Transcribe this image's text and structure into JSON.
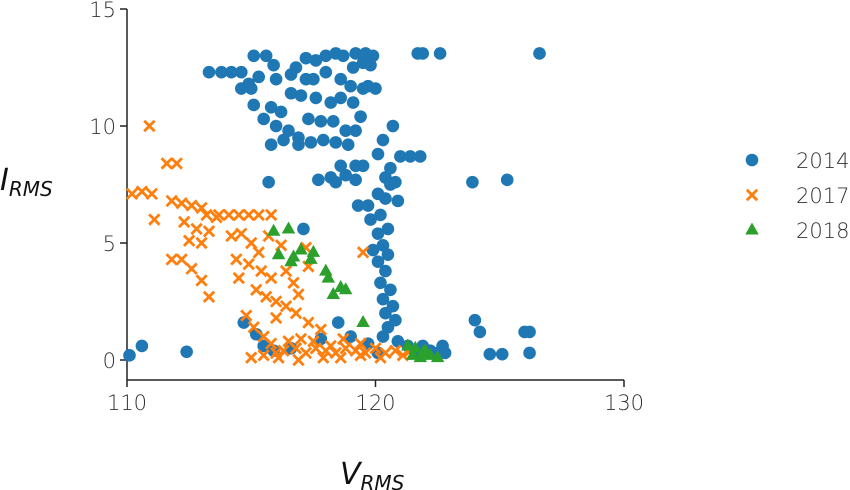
{
  "chart_data": {
    "type": "scatter",
    "xlabel": {
      "main": "V",
      "sub": "RMS"
    },
    "ylabel": {
      "main": "I",
      "sub": "RMS"
    },
    "xlim": [
      110,
      130
    ],
    "ylim": [
      0,
      15
    ],
    "xticks": [
      110,
      120,
      130
    ],
    "yticks": [
      0,
      5,
      10,
      15
    ],
    "grid": false,
    "legend_position": "right",
    "series": [
      {
        "name": "2014",
        "color": "#1f77b4",
        "marker": "circle",
        "points": [
          [
            110.1,
            0.2
          ],
          [
            110.6,
            0.6
          ],
          [
            112.4,
            0.35
          ],
          [
            113.3,
            12.3
          ],
          [
            113.8,
            12.3
          ],
          [
            114.2,
            12.3
          ],
          [
            114.6,
            12.3
          ],
          [
            114.9,
            11.8
          ],
          [
            115.1,
            13.0
          ],
          [
            115.6,
            13.0
          ],
          [
            115.3,
            12.1
          ],
          [
            115.9,
            12.6
          ],
          [
            116.0,
            12.0
          ],
          [
            116.6,
            12.2
          ],
          [
            116.8,
            12.5
          ],
          [
            117.2,
            12.0
          ],
          [
            117.5,
            12.0
          ],
          [
            117.2,
            12.9
          ],
          [
            117.6,
            12.8
          ],
          [
            118.0,
            13.0
          ],
          [
            118.4,
            13.1
          ],
          [
            118.7,
            13.0
          ],
          [
            119.2,
            13.1
          ],
          [
            119.6,
            13.1
          ],
          [
            118.0,
            12.3
          ],
          [
            118.6,
            12.0
          ],
          [
            119.0,
            11.7
          ],
          [
            119.5,
            11.6
          ],
          [
            120.0,
            11.6
          ],
          [
            119.9,
            13.0
          ],
          [
            119.5,
            12.7
          ],
          [
            119.8,
            12.6
          ],
          [
            114.6,
            11.6
          ],
          [
            115.0,
            11.6
          ],
          [
            115.1,
            10.9
          ],
          [
            115.8,
            10.8
          ],
          [
            116.2,
            10.6
          ],
          [
            116.6,
            11.4
          ],
          [
            117.0,
            11.3
          ],
          [
            117.6,
            11.2
          ],
          [
            118.2,
            11.0
          ],
          [
            118.6,
            11.2
          ],
          [
            119.1,
            11.0
          ],
          [
            115.5,
            10.3
          ],
          [
            116.0,
            10.0
          ],
          [
            116.5,
            9.8
          ],
          [
            116.9,
            9.5
          ],
          [
            117.3,
            10.3
          ],
          [
            117.8,
            10.2
          ],
          [
            118.3,
            10.2
          ],
          [
            118.8,
            9.8
          ],
          [
            115.8,
            9.2
          ],
          [
            116.3,
            9.4
          ],
          [
            116.9,
            9.2
          ],
          [
            117.4,
            9.3
          ],
          [
            117.9,
            9.4
          ],
          [
            118.4,
            9.3
          ],
          [
            118.9,
            9.2
          ],
          [
            119.2,
            9.8
          ],
          [
            119.4,
            10.4
          ],
          [
            119.2,
            8.3
          ],
          [
            119.5,
            8.3
          ],
          [
            118.6,
            8.3
          ],
          [
            118.2,
            7.8
          ],
          [
            118.8,
            7.9
          ],
          [
            119.2,
            7.7
          ],
          [
            117.7,
            7.7
          ],
          [
            118.4,
            7.6
          ],
          [
            119.3,
            6.6
          ],
          [
            119.7,
            6.6
          ],
          [
            120.1,
            7.1
          ],
          [
            120.4,
            6.9
          ],
          [
            120.6,
            8.2
          ],
          [
            121.0,
            8.7
          ],
          [
            121.4,
            8.7
          ],
          [
            121.8,
            8.7
          ],
          [
            120.8,
            7.6
          ],
          [
            120.4,
            7.8
          ],
          [
            120.2,
            6.2
          ],
          [
            119.8,
            6.0
          ],
          [
            120.5,
            5.6
          ],
          [
            120.1,
            5.4
          ],
          [
            120.3,
            4.9
          ],
          [
            119.9,
            4.7
          ],
          [
            120.5,
            4.5
          ],
          [
            120.1,
            4.2
          ],
          [
            120.4,
            3.8
          ],
          [
            120.2,
            3.3
          ],
          [
            120.6,
            3.0
          ],
          [
            120.3,
            2.6
          ],
          [
            120.7,
            2.3
          ],
          [
            120.4,
            2.0
          ],
          [
            120.8,
            1.7
          ],
          [
            120.5,
            1.4
          ],
          [
            120.3,
            1.0
          ],
          [
            120.9,
            0.8
          ],
          [
            121.3,
            0.6
          ],
          [
            121.6,
            0.3
          ],
          [
            121.9,
            0.6
          ],
          [
            122.2,
            0.4
          ],
          [
            122.5,
            0.3
          ],
          [
            120.6,
            7.5
          ],
          [
            120.9,
            6.8
          ],
          [
            120.1,
            8.8
          ],
          [
            120.7,
            10.0
          ],
          [
            119.7,
            11.7
          ],
          [
            119.1,
            12.5
          ],
          [
            120.3,
            9.4
          ],
          [
            114.7,
            1.6
          ],
          [
            115.2,
            1.1
          ],
          [
            115.5,
            0.6
          ],
          [
            115.9,
            0.4
          ],
          [
            116.6,
            0.5
          ],
          [
            117.8,
            0.9
          ],
          [
            118.5,
            1.6
          ],
          [
            119.0,
            1.0
          ],
          [
            119.7,
            0.7
          ],
          [
            120.1,
            0.3
          ],
          [
            121.7,
            13.1
          ],
          [
            121.9,
            13.1
          ],
          [
            122.6,
            13.1
          ],
          [
            126.6,
            13.1
          ],
          [
            123.9,
            7.6
          ],
          [
            125.3,
            7.7
          ],
          [
            124.0,
            1.7
          ],
          [
            124.2,
            1.2
          ],
          [
            122.7,
            0.6
          ],
          [
            122.8,
            0.3
          ],
          [
            124.6,
            0.25
          ],
          [
            125.1,
            0.25
          ],
          [
            126.0,
            1.2
          ],
          [
            126.2,
            1.2
          ],
          [
            126.2,
            0.3
          ],
          [
            115.7,
            7.6
          ],
          [
            117.1,
            5.6
          ]
        ]
      },
      {
        "name": "2017",
        "color": "#ff7f0e",
        "marker": "x",
        "points": [
          [
            110.9,
            10.0
          ],
          [
            110.2,
            7.1
          ],
          [
            110.6,
            7.2
          ],
          [
            111.0,
            7.1
          ],
          [
            111.6,
            8.4
          ],
          [
            112.0,
            8.4
          ],
          [
            111.1,
            6.0
          ],
          [
            111.8,
            6.8
          ],
          [
            112.2,
            6.7
          ],
          [
            112.6,
            6.6
          ],
          [
            113.0,
            6.5
          ],
          [
            113.2,
            6.2
          ],
          [
            112.3,
            5.9
          ],
          [
            112.8,
            5.6
          ],
          [
            113.3,
            5.5
          ],
          [
            112.5,
            5.1
          ],
          [
            113.0,
            5.0
          ],
          [
            111.8,
            4.3
          ],
          [
            112.2,
            4.3
          ],
          [
            112.6,
            3.9
          ],
          [
            113.0,
            3.4
          ],
          [
            113.3,
            2.7
          ],
          [
            113.7,
            6.2
          ],
          [
            114.1,
            6.2
          ],
          [
            114.5,
            6.2
          ],
          [
            114.9,
            6.2
          ],
          [
            115.3,
            6.2
          ],
          [
            115.8,
            6.2
          ],
          [
            114.6,
            5.4
          ],
          [
            115.0,
            5.0
          ],
          [
            115.3,
            4.6
          ],
          [
            114.4,
            4.3
          ],
          [
            114.9,
            4.1
          ],
          [
            115.4,
            3.8
          ],
          [
            115.8,
            3.5
          ],
          [
            114.5,
            3.5
          ],
          [
            115.2,
            3.0
          ],
          [
            115.6,
            2.7
          ],
          [
            116.0,
            2.5
          ],
          [
            116.4,
            2.3
          ],
          [
            115.7,
            5.3
          ],
          [
            116.2,
            4.9
          ],
          [
            116.4,
            3.8
          ],
          [
            116.7,
            3.3
          ],
          [
            116.9,
            2.8
          ],
          [
            117.2,
            4.8
          ],
          [
            116.8,
            2.0
          ],
          [
            117.3,
            1.6
          ],
          [
            117.8,
            1.3
          ],
          [
            114.8,
            1.9
          ],
          [
            115.1,
            1.4
          ],
          [
            115.5,
            1.0
          ],
          [
            115.0,
            0.1
          ],
          [
            115.5,
            0.2
          ],
          [
            116.0,
            0.3
          ],
          [
            116.3,
            0.4
          ],
          [
            116.8,
            0.5
          ],
          [
            117.2,
            0.3
          ],
          [
            117.6,
            0.5
          ],
          [
            118.0,
            0.4
          ],
          [
            118.4,
            0.3
          ],
          [
            118.8,
            0.5
          ],
          [
            119.2,
            0.4
          ],
          [
            119.6,
            0.3
          ],
          [
            120.0,
            0.5
          ],
          [
            120.4,
            0.3
          ],
          [
            120.8,
            0.4
          ],
          [
            121.1,
            0.2
          ],
          [
            121.4,
            0.4
          ],
          [
            115.8,
            0.7
          ],
          [
            116.5,
            0.8
          ],
          [
            117.0,
            0.9
          ],
          [
            117.5,
            0.8
          ],
          [
            118.2,
            0.6
          ],
          [
            118.7,
            0.9
          ],
          [
            119.4,
            0.7
          ],
          [
            116.1,
            0.1
          ],
          [
            116.9,
            0.0
          ],
          [
            117.9,
            0.1
          ],
          [
            118.6,
            0.1
          ],
          [
            119.4,
            0.2
          ],
          [
            120.2,
            0.1
          ],
          [
            119.5,
            4.6
          ],
          [
            117.3,
            4.0
          ],
          [
            116.0,
            1.8
          ],
          [
            113.6,
            6.1
          ],
          [
            114.2,
            5.3
          ]
        ]
      },
      {
        "name": "2018",
        "color": "#2ca02c",
        "marker": "triangle",
        "points": [
          [
            115.9,
            5.5
          ],
          [
            116.5,
            5.6
          ],
          [
            116.1,
            4.5
          ],
          [
            116.7,
            4.4
          ],
          [
            117.0,
            4.7
          ],
          [
            117.5,
            4.6
          ],
          [
            117.4,
            4.3
          ],
          [
            116.6,
            4.2
          ],
          [
            118.0,
            3.8
          ],
          [
            118.1,
            3.5
          ],
          [
            118.6,
            3.1
          ],
          [
            118.8,
            3.0
          ],
          [
            118.3,
            2.8
          ],
          [
            119.5,
            1.6
          ],
          [
            121.3,
            0.6
          ],
          [
            121.6,
            0.5
          ],
          [
            121.9,
            0.3
          ],
          [
            122.2,
            0.2
          ],
          [
            122.5,
            0.1
          ],
          [
            121.5,
            0.2
          ],
          [
            121.8,
            0.1
          ],
          [
            122.0,
            0.4
          ]
        ]
      }
    ]
  }
}
